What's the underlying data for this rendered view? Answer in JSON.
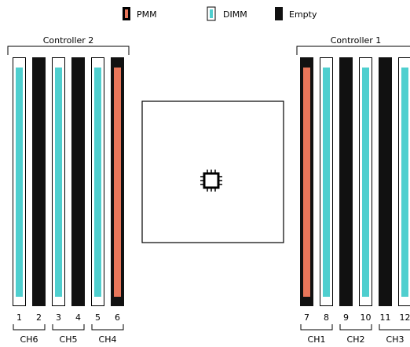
{
  "legend": {
    "pmm_label": "PMM",
    "dimm_label": "DIMM",
    "empty_label": "Empty"
  },
  "colors": {
    "pmm": "#e8765a",
    "dimm": "#4fcfcf",
    "empty": "#111111",
    "outline": "#000000"
  },
  "controllers": [
    {
      "label": "Controller 2",
      "channels": [
        {
          "label": "CH6",
          "slots": [
            {
              "number": "1",
              "type": "dimm"
            },
            {
              "number": "2",
              "type": "empty"
            }
          ]
        },
        {
          "label": "CH5",
          "slots": [
            {
              "number": "3",
              "type": "dimm"
            },
            {
              "number": "4",
              "type": "empty"
            }
          ]
        },
        {
          "label": "CH4",
          "slots": [
            {
              "number": "5",
              "type": "dimm"
            },
            {
              "number": "6",
              "type": "pmm"
            }
          ]
        }
      ]
    },
    {
      "label": "Controller 1",
      "channels": [
        {
          "label": "CH1",
          "slots": [
            {
              "number": "7",
              "type": "pmm"
            },
            {
              "number": "8",
              "type": "dimm"
            }
          ]
        },
        {
          "label": "CH2",
          "slots": [
            {
              "number": "9",
              "type": "empty"
            },
            {
              "number": "10",
              "type": "dimm"
            }
          ]
        },
        {
          "label": "CH3",
          "slots": [
            {
              "number": "11",
              "type": "empty"
            },
            {
              "number": "12",
              "type": "dimm"
            }
          ]
        }
      ]
    }
  ],
  "cpu": {
    "icon": "cpu-chip-icon"
  }
}
